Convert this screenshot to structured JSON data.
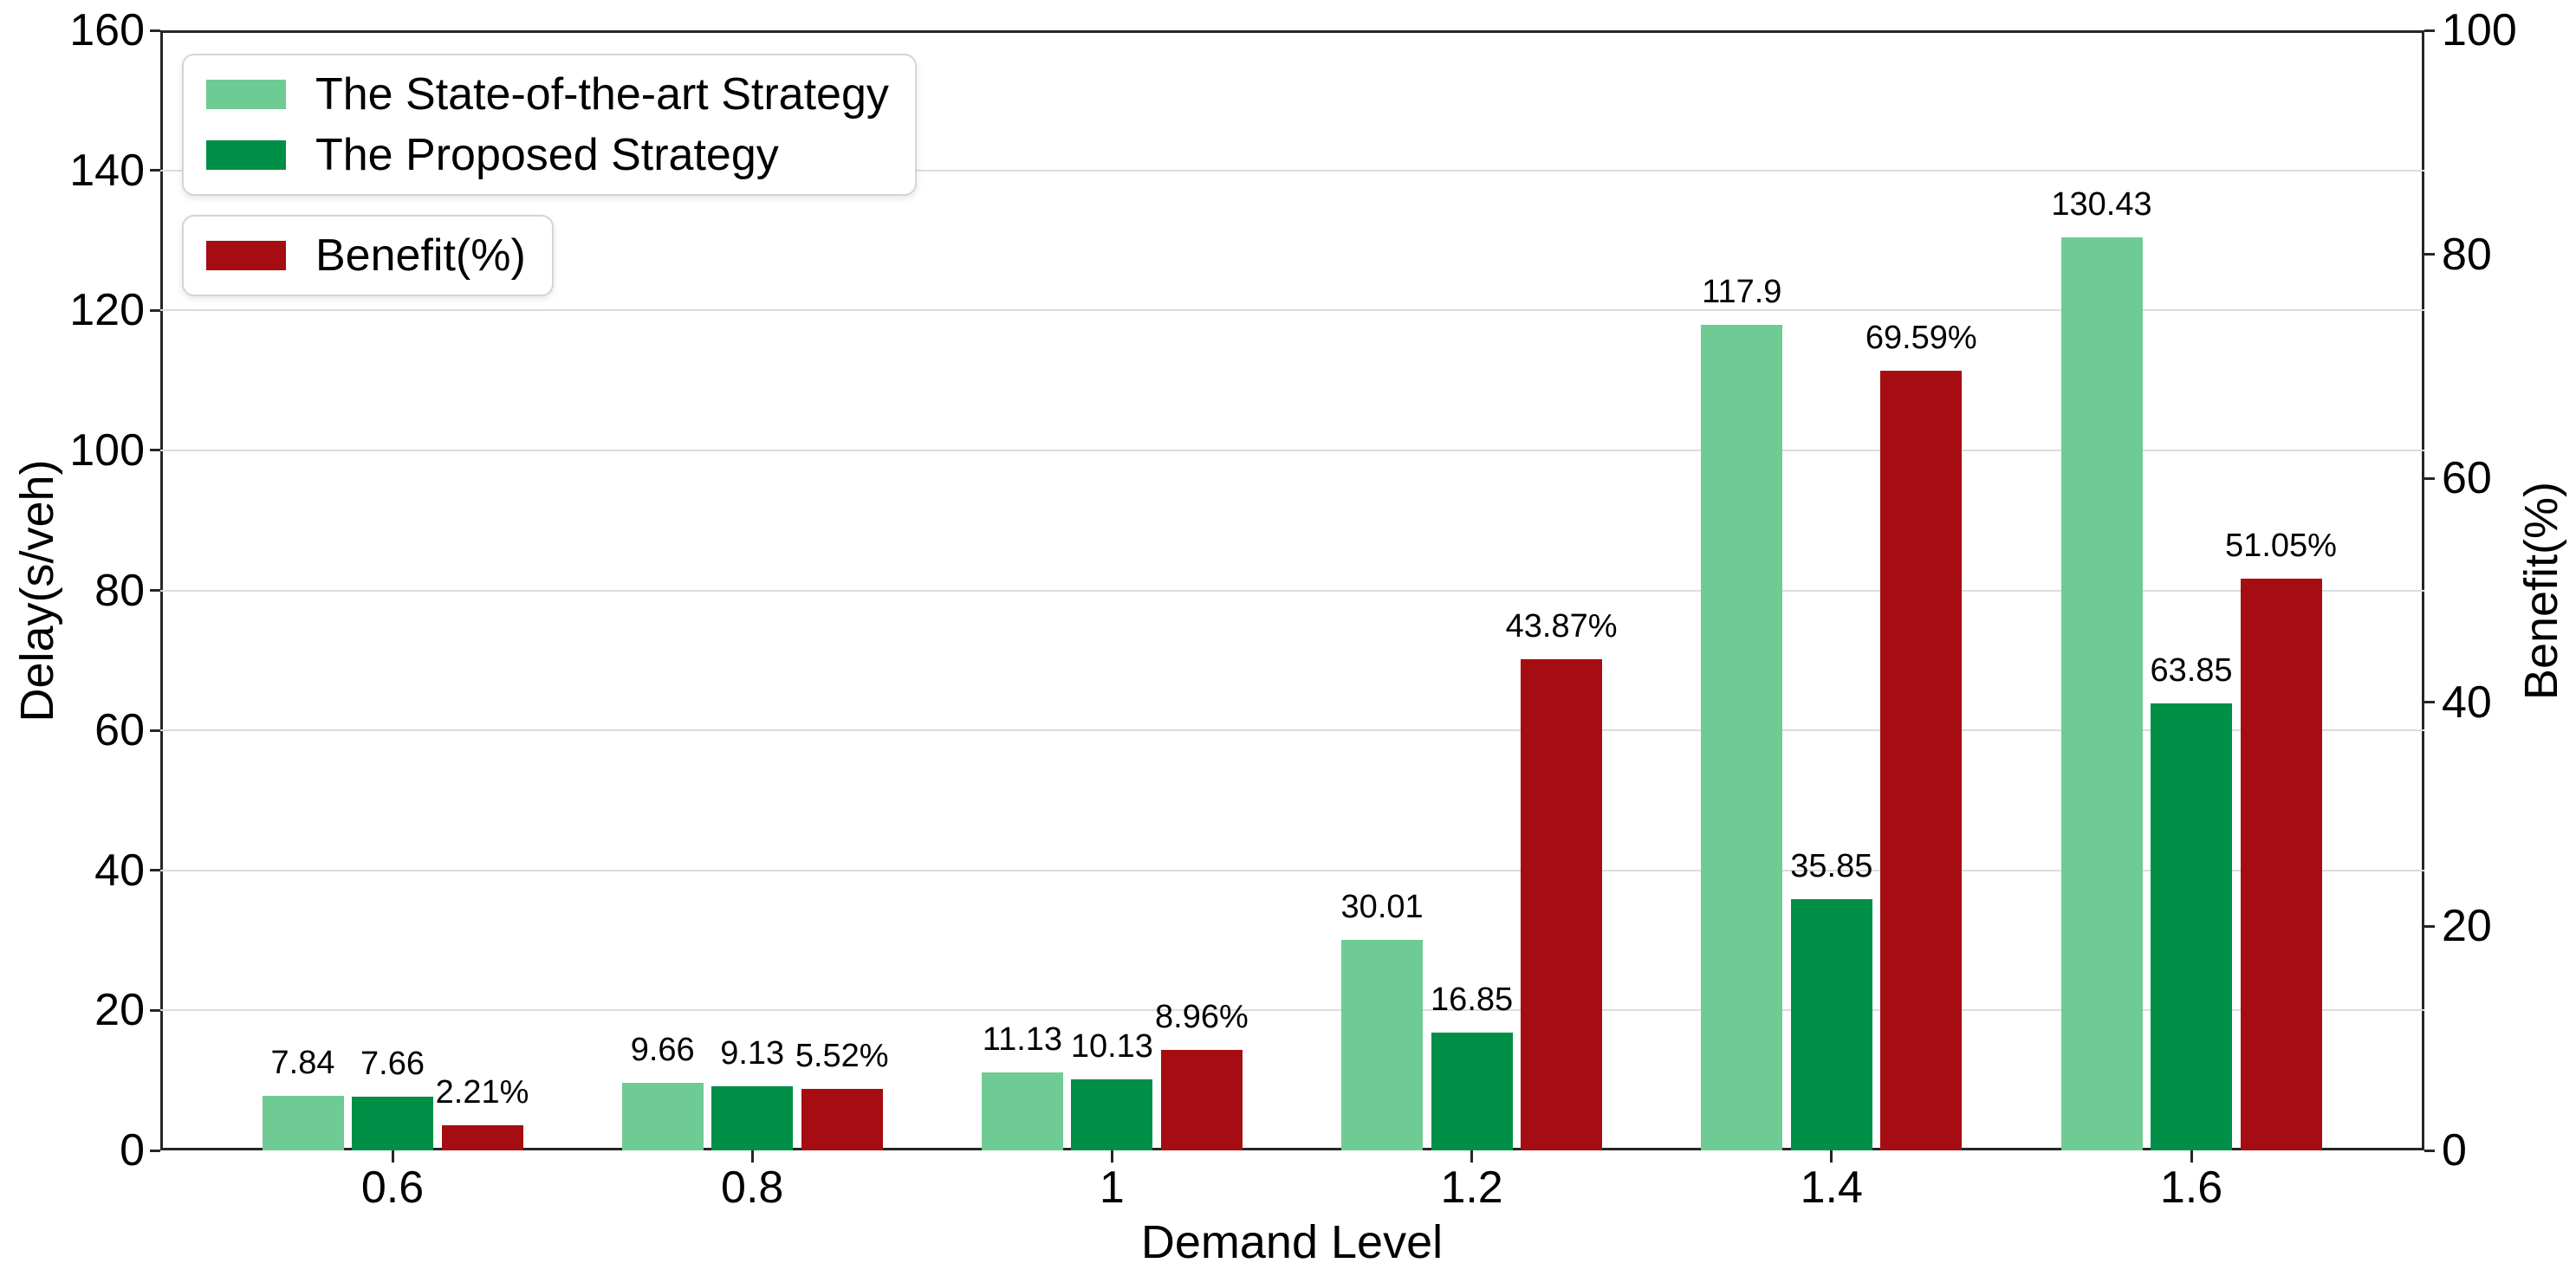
{
  "chart_data": {
    "type": "bar",
    "title": "",
    "xlabel": "Demand Level",
    "ylabel_left": "Delay(s/veh)",
    "ylabel_right": "Benefit(%)",
    "categories": [
      "0.6",
      "0.8",
      "1",
      "1.2",
      "1.4",
      "1.6"
    ],
    "series": [
      {
        "name": "The State-of-the-art Strategy",
        "axis": "left",
        "color": "#6fcb94",
        "values": [
          7.84,
          9.66,
          11.13,
          30.01,
          117.9,
          130.43
        ],
        "labels": [
          "7.84",
          "9.66",
          "11.13",
          "30.01",
          "117.9",
          "130.43"
        ]
      },
      {
        "name": "The Proposed Strategy",
        "axis": "left",
        "color": "#008f47",
        "values": [
          7.66,
          9.13,
          10.13,
          16.85,
          35.85,
          63.85
        ],
        "labels": [
          "7.66",
          "9.13",
          "10.13",
          "16.85",
          "35.85",
          "63.85"
        ]
      },
      {
        "name": "Benefit(%)",
        "axis": "right",
        "color": "#a50d12",
        "values": [
          2.21,
          5.52,
          8.96,
          43.87,
          69.59,
          51.05
        ],
        "labels": [
          "2.21%",
          "5.52%",
          "8.96%",
          "43.87%",
          "69.59%",
          "51.05%"
        ]
      }
    ],
    "left_axis": {
      "min": 0,
      "max": 160,
      "ticks": [
        0,
        20,
        40,
        60,
        80,
        100,
        120,
        140,
        160
      ]
    },
    "right_axis": {
      "min": 0,
      "max": 100,
      "ticks": [
        0,
        20,
        40,
        60,
        80,
        100
      ]
    },
    "grid": true,
    "legend_position": "upper-left",
    "legend_boxes": [
      [
        0,
        1
      ],
      [
        2
      ]
    ]
  },
  "style": {
    "grid_color": "#dcdcdc",
    "spine_color": "#262626",
    "text_color": "#000000",
    "background": "#ffffff"
  }
}
